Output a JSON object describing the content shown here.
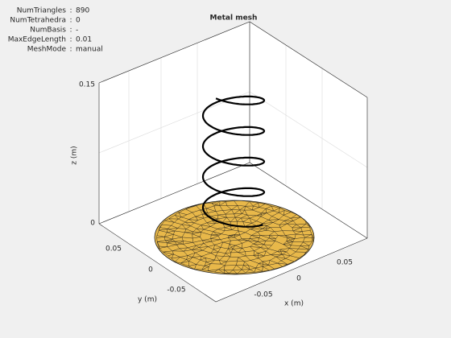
{
  "info": {
    "rows": [
      [
        "NumTriangles",
        ":",
        "890"
      ],
      [
        "NumTetrahedra",
        ":",
        "0"
      ],
      [
        "NumBasis",
        ":",
        "-"
      ],
      [
        "MaxEdgeLength",
        ":",
        "0.01"
      ],
      [
        "MeshMode",
        ":",
        "manual"
      ]
    ]
  },
  "plot": {
    "title": "Metal mesh",
    "xlabel": "x (m)",
    "ylabel": "y (m)",
    "zlabel": "z (m)",
    "xticks": [
      "-0.05",
      "0",
      "0.05"
    ],
    "yticks": [
      "-0.05",
      "0",
      "0.05"
    ],
    "zticks": [
      "0",
      "0.15"
    ]
  }
}
